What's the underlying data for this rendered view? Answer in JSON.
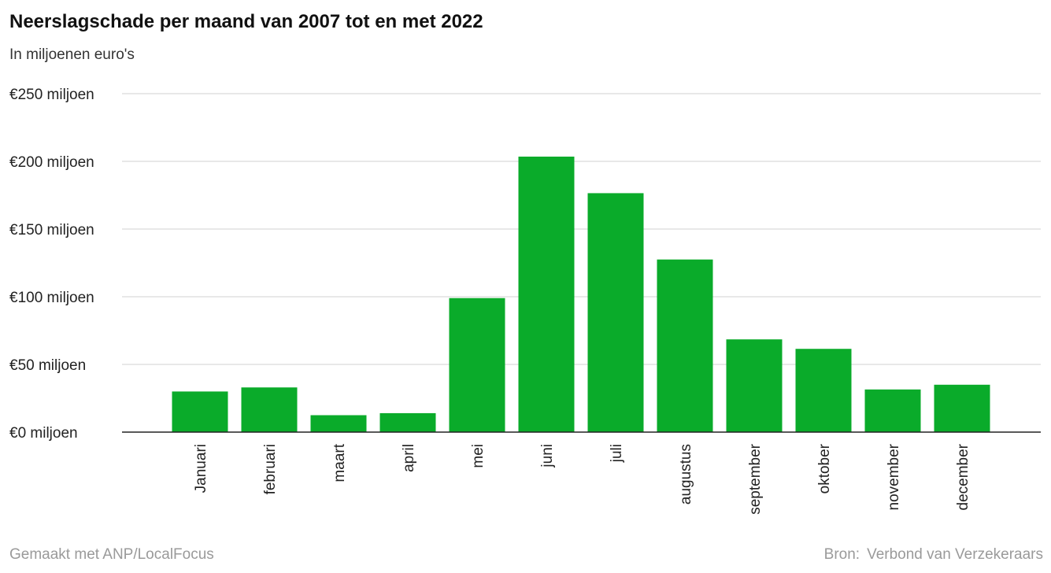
{
  "chart_data": {
    "type": "bar",
    "title": "Neerslagschade per maand van 2007 tot en met 2022",
    "subtitle": "In miljoenen euro's",
    "categories": [
      "Januari",
      "februari",
      "maart",
      "april",
      "mei",
      "juni",
      "juli",
      "augustus",
      "september",
      "oktober",
      "november",
      "december"
    ],
    "values": [
      30,
      33,
      12.5,
      14,
      99,
      203.5,
      176.5,
      127.5,
      68.5,
      61.5,
      31.5,
      35
    ],
    "ylim": [
      0,
      250
    ],
    "yticks": [
      0,
      50,
      100,
      150,
      200,
      250
    ],
    "ytick_labels": [
      "€0 miljoen",
      "€50 miljoen",
      "€100 miljoen",
      "€150 miljoen",
      "€200 miljoen",
      "€250 miljoen"
    ],
    "bar_color": "#0aab2a",
    "grid": true,
    "legend": "none"
  },
  "footer": {
    "made_with": "Gemaakt met ANP/LocalFocus",
    "source_label": "Bron:",
    "source": "Verbond van Verzekeraars"
  }
}
